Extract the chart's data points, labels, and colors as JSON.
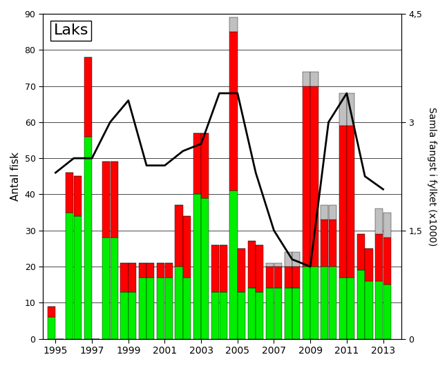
{
  "years": [
    1995,
    1996,
    1997,
    1998,
    1999,
    2000,
    2001,
    2002,
    2003,
    2004,
    2005,
    2006,
    2007,
    2008,
    2009,
    2010,
    2011,
    2012,
    2013
  ],
  "green_vals": [
    6,
    35,
    56,
    28,
    13,
    17,
    17,
    20,
    40,
    13,
    41,
    14,
    14,
    14,
    20,
    20,
    17,
    19,
    16
  ],
  "red_vals": [
    3,
    11,
    22,
    21,
    8,
    4,
    4,
    17,
    17,
    13,
    44,
    13,
    6,
    6,
    50,
    13,
    42,
    10,
    13
  ],
  "gray_vals": [
    0,
    0,
    0,
    0,
    0,
    0,
    0,
    0,
    0,
    0,
    4,
    0,
    1,
    4,
    4,
    4,
    9,
    0,
    7
  ],
  "bar2_green": [
    0,
    34,
    0,
    28,
    13,
    17,
    17,
    17,
    39,
    13,
    13,
    13,
    14,
    14,
    20,
    20,
    17,
    16,
    15
  ],
  "bar2_red": [
    0,
    11,
    0,
    21,
    8,
    4,
    4,
    17,
    18,
    13,
    12,
    13,
    6,
    6,
    50,
    13,
    42,
    9,
    13
  ],
  "bar2_gray": [
    0,
    0,
    0,
    0,
    0,
    0,
    0,
    0,
    0,
    0,
    0,
    0,
    1,
    4,
    4,
    4,
    9,
    0,
    7
  ],
  "line_vals": [
    2.3,
    2.5,
    2.5,
    3.0,
    3.3,
    2.4,
    2.4,
    2.6,
    2.7,
    3.4,
    3.4,
    2.3,
    1.5,
    1.1,
    1.0,
    3.0,
    3.4,
    2.25,
    2.07
  ],
  "ylim_left": [
    0,
    90
  ],
  "ylim_right": [
    0,
    4.5
  ],
  "ylabel_left": "Antal fisk",
  "ylabel_right": "Samla fangst i fylket (x1000)",
  "title": "Laks",
  "green_color": "#00ee00",
  "red_color": "#ff0000",
  "gray_color": "#c0c0c0",
  "line_color": "#000000",
  "bg_color": "#ffffff",
  "xticks": [
    1995,
    1997,
    1999,
    2001,
    2003,
    2005,
    2007,
    2009,
    2011,
    2013
  ],
  "left_yticks": [
    0,
    10,
    20,
    30,
    40,
    50,
    60,
    70,
    80,
    90
  ],
  "right_yticks": [
    0,
    1.5,
    3.0,
    4.5
  ]
}
